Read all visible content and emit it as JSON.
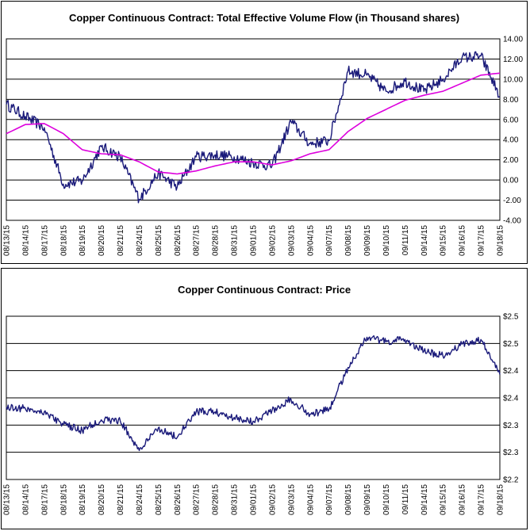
{
  "charts": {
    "volume_title": "Copper Continuous Contract: Total Effective Volume Flow (in Thousand shares)",
    "price_title": "Copper Continuous Contract: Price"
  },
  "colors": {
    "series": "#1a1a7a",
    "moving_average": "#dd00dd",
    "grid": "#000000",
    "background": "#ffffff"
  },
  "chart_data": [
    {
      "type": "line",
      "title": "Copper Continuous Contract: Total Effective Volume Flow (in Thousand shares)",
      "xlabel": "",
      "ylabel": "",
      "categories": [
        "08/13/15",
        "08/14/15",
        "08/17/15",
        "08/18/15",
        "08/19/15",
        "08/20/15",
        "08/21/15",
        "08/24/15",
        "08/25/15",
        "08/26/15",
        "08/27/15",
        "08/28/15",
        "08/31/15",
        "09/01/15",
        "09/02/15",
        "09/03/15",
        "09/04/15",
        "09/07/15",
        "09/08/15",
        "09/09/15",
        "09/10/15",
        "09/11/15",
        "09/14/15",
        "09/15/15",
        "09/16/15",
        "09/17/15",
        "09/18/15"
      ],
      "yticks": [
        "-4.00",
        "-2.00",
        "0.00",
        "2.00",
        "4.00",
        "6.00",
        "8.00",
        "10.00",
        "12.00",
        "14.00"
      ],
      "ylim": [
        -4,
        14
      ],
      "grid": true,
      "series": [
        {
          "values": [
            7.5,
            6.3,
            5.2,
            -0.4,
            -0.1,
            3.3,
            2.3,
            -1.9,
            0.7,
            -0.7,
            2.3,
            2.5,
            2.3,
            1.7,
            1.4,
            5.8,
            3.6,
            3.9,
            10.8,
            10.4,
            8.8,
            9.8,
            8.8,
            10.0,
            12.1,
            12.3,
            8.3
          ]
        },
        {
          "values": [
            4.6,
            5.5,
            5.6,
            4.6,
            3.0,
            2.6,
            2.5,
            1.8,
            0.8,
            0.6,
            0.9,
            1.4,
            1.8,
            1.8,
            1.5,
            1.9,
            2.6,
            3.0,
            4.8,
            6.1,
            7.0,
            7.9,
            8.4,
            8.8,
            9.6,
            10.4,
            10.6
          ]
        }
      ]
    },
    {
      "type": "line",
      "title": "Copper Continuous Contract: Price",
      "xlabel": "",
      "ylabel": "",
      "categories": [
        "08/13/15",
        "08/14/15",
        "08/17/15",
        "08/18/15",
        "08/19/15",
        "08/20/15",
        "08/21/15",
        "08/24/15",
        "08/25/15",
        "08/26/15",
        "08/27/15",
        "08/28/15",
        "08/31/15",
        "09/01/15",
        "09/02/15",
        "09/03/15",
        "09/04/15",
        "09/07/15",
        "09/08/15",
        "09/09/15",
        "09/10/15",
        "09/11/15",
        "09/14/15",
        "09/15/15",
        "09/16/15",
        "09/17/15",
        "09/18/15"
      ],
      "yticks": [
        "$2.2",
        "$2.3",
        "$2.3",
        "$2.4",
        "$2.4",
        "$2.5",
        "$2.5"
      ],
      "ylim": [
        2.2,
        2.55
      ],
      "grid": true,
      "series": [
        {
          "values": [
            2.355,
            2.352,
            2.345,
            2.318,
            2.305,
            2.328,
            2.326,
            2.262,
            2.31,
            2.29,
            2.345,
            2.345,
            2.333,
            2.325,
            2.348,
            2.372,
            2.34,
            2.35,
            2.44,
            2.505,
            2.495,
            2.5,
            2.475,
            2.465,
            2.49,
            2.5,
            2.425
          ]
        }
      ]
    }
  ]
}
